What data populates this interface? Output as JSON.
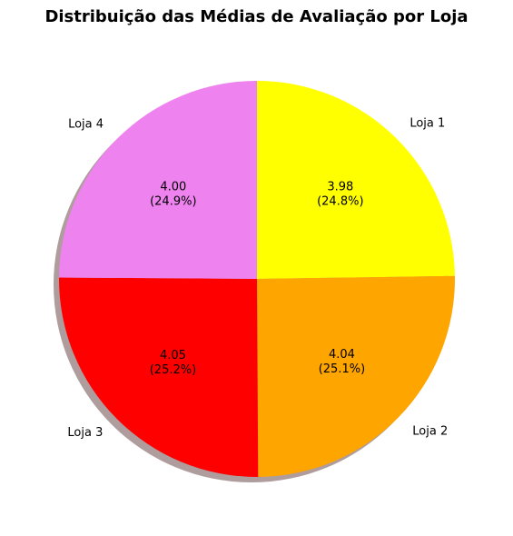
{
  "chart_data": {
    "type": "pie",
    "title": "Distribuição das Médias de Avaliação por Loja",
    "categories": [
      "Loja 1",
      "Loja 2",
      "Loja 3",
      "Loja 4"
    ],
    "values": [
      3.98,
      4.04,
      4.05,
      4.0
    ],
    "value_labels": [
      "3.98",
      "4.04",
      "4.05",
      "4.00"
    ],
    "percent_labels": [
      "(24.8%)",
      "(25.1%)",
      "(25.2%)",
      "(24.9%)"
    ],
    "colors": [
      "#ffff00",
      "#ffa500",
      "#ff0000",
      "#ee82ee"
    ],
    "start_angle_deg": 90,
    "direction": "clockwise",
    "shadow": true
  }
}
